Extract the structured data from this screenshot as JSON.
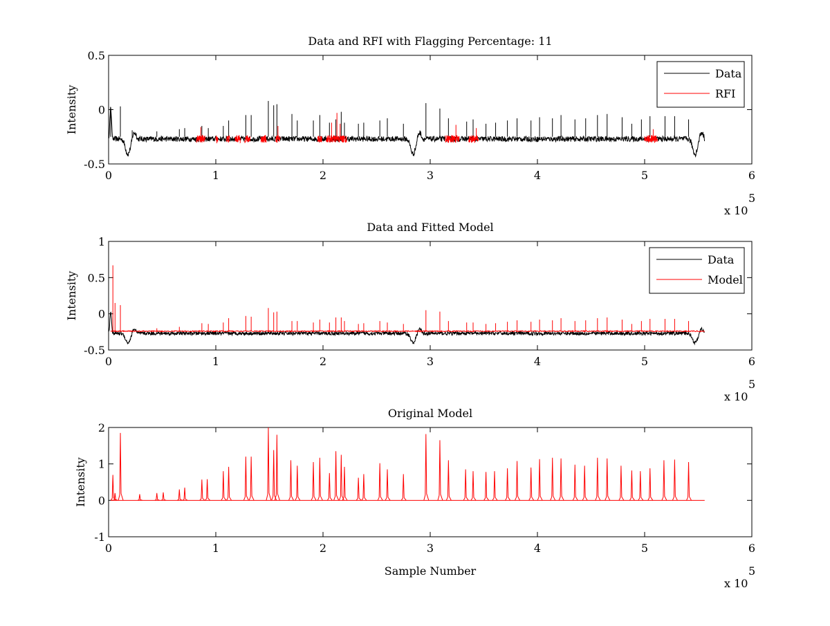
{
  "figure": {
    "background": "#ffffff"
  },
  "chart_data": [
    {
      "type": "line",
      "title": "Data and RFI with Flagging Percentage: 11",
      "xlabel": "",
      "ylabel": "Intensity",
      "xlim": [
        0,
        6
      ],
      "ylim": [
        -0.5,
        0.5
      ],
      "x_ticks": [
        "0",
        "1",
        "2",
        "3",
        "4",
        "5",
        "6"
      ],
      "y_ticks": [
        "-0.5",
        "0",
        "0.5"
      ],
      "x_exponent_label": "x 10",
      "x_exponent_power": "5",
      "grid": false,
      "legend_position": "top-right",
      "series": [
        {
          "name": "Data",
          "color": "#000000",
          "kind": "data_trace"
        },
        {
          "name": "RFI",
          "color": "#ff0000",
          "kind": "flagged_segments"
        }
      ],
      "baseline": -0.27,
      "dips": [
        {
          "x": 0.18,
          "y": -0.41
        },
        {
          "x": 2.84,
          "y": -0.41
        },
        {
          "x": 5.47,
          "y": -0.41
        }
      ],
      "data_spikes": [
        {
          "x": 0.02,
          "y": 0.02
        },
        {
          "x": 0.11,
          "y": 0.03
        },
        {
          "x": 0.22,
          "y": -0.19
        },
        {
          "x": 0.45,
          "y": -0.2
        },
        {
          "x": 0.66,
          "y": -0.18
        },
        {
          "x": 0.71,
          "y": -0.17
        },
        {
          "x": 0.87,
          "y": -0.15
        },
        {
          "x": 0.93,
          "y": -0.17
        },
        {
          "x": 1.07,
          "y": -0.15
        },
        {
          "x": 1.12,
          "y": -0.1
        },
        {
          "x": 1.28,
          "y": -0.05
        },
        {
          "x": 1.33,
          "y": -0.05
        },
        {
          "x": 1.49,
          "y": 0.08
        },
        {
          "x": 1.54,
          "y": 0.04
        },
        {
          "x": 1.57,
          "y": 0.05
        },
        {
          "x": 1.71,
          "y": -0.04
        },
        {
          "x": 1.76,
          "y": -0.1
        },
        {
          "x": 1.91,
          "y": -0.1
        },
        {
          "x": 1.97,
          "y": -0.05
        },
        {
          "x": 2.06,
          "y": -0.12
        },
        {
          "x": 2.12,
          "y": -0.09
        },
        {
          "x": 2.17,
          "y": -0.02
        },
        {
          "x": 2.2,
          "y": -0.12
        },
        {
          "x": 2.33,
          "y": -0.13
        },
        {
          "x": 2.38,
          "y": -0.12
        },
        {
          "x": 2.53,
          "y": -0.1
        },
        {
          "x": 2.6,
          "y": -0.08
        },
        {
          "x": 2.75,
          "y": -0.13
        },
        {
          "x": 2.96,
          "y": 0.06
        },
        {
          "x": 3.09,
          "y": 0.01
        },
        {
          "x": 3.17,
          "y": -0.08
        },
        {
          "x": 3.34,
          "y": -0.11
        },
        {
          "x": 3.4,
          "y": -0.09
        },
        {
          "x": 3.52,
          "y": -0.13
        },
        {
          "x": 3.61,
          "y": -0.12
        },
        {
          "x": 3.72,
          "y": -0.1
        },
        {
          "x": 3.81,
          "y": -0.08
        },
        {
          "x": 3.94,
          "y": -0.1
        },
        {
          "x": 4.02,
          "y": -0.07
        },
        {
          "x": 4.14,
          "y": -0.08
        },
        {
          "x": 4.22,
          "y": -0.05
        },
        {
          "x": 4.35,
          "y": -0.09
        },
        {
          "x": 4.45,
          "y": -0.08
        },
        {
          "x": 4.56,
          "y": -0.05
        },
        {
          "x": 4.65,
          "y": -0.04
        },
        {
          "x": 4.79,
          "y": -0.07
        },
        {
          "x": 4.88,
          "y": -0.13
        },
        {
          "x": 4.97,
          "y": -0.09
        },
        {
          "x": 5.05,
          "y": -0.06
        },
        {
          "x": 5.19,
          "y": -0.06
        },
        {
          "x": 5.28,
          "y": -0.06
        },
        {
          "x": 5.41,
          "y": -0.09
        }
      ],
      "rfi_segments": [
        [
          0.82,
          0.9
        ],
        [
          1.0,
          1.02
        ],
        [
          1.1,
          1.13
        ],
        [
          1.18,
          1.23
        ],
        [
          1.27,
          1.32
        ],
        [
          1.42,
          1.47
        ],
        [
          1.56,
          1.6
        ],
        [
          1.95,
          1.99
        ],
        [
          2.03,
          2.22
        ],
        [
          3.14,
          3.27
        ],
        [
          3.36,
          3.45
        ],
        [
          5.0,
          5.12
        ]
      ]
    },
    {
      "type": "line",
      "title": "Data and Fitted Model",
      "xlabel": "",
      "ylabel": "Intensity",
      "xlim": [
        0,
        6
      ],
      "ylim": [
        -0.5,
        1
      ],
      "x_ticks": [
        "0",
        "1",
        "2",
        "3",
        "4",
        "5",
        "6"
      ],
      "y_ticks": [
        "-0.5",
        "0",
        "0.5",
        "1"
      ],
      "x_exponent_label": "x 10",
      "x_exponent_power": "5",
      "grid": false,
      "legend_position": "top-right",
      "series": [
        {
          "name": "Data",
          "color": "#000000",
          "kind": "data_trace"
        },
        {
          "name": "Model",
          "color": "#ff0000",
          "kind": "model_trace"
        }
      ],
      "baseline": -0.27,
      "model_baseline": -0.24,
      "dips": [
        {
          "x": 0.18,
          "y": -0.4
        },
        {
          "x": 2.84,
          "y": -0.4
        },
        {
          "x": 5.47,
          "y": -0.4
        }
      ],
      "model_spikes": [
        {
          "x": 0.04,
          "y": 0.67
        },
        {
          "x": 0.06,
          "y": 0.15
        },
        {
          "x": 0.11,
          "y": 0.12
        },
        {
          "x": 0.45,
          "y": -0.2
        },
        {
          "x": 0.66,
          "y": -0.18
        },
        {
          "x": 0.87,
          "y": -0.13
        },
        {
          "x": 0.93,
          "y": -0.14
        },
        {
          "x": 1.07,
          "y": -0.12
        },
        {
          "x": 1.12,
          "y": -0.06
        },
        {
          "x": 1.28,
          "y": -0.03
        },
        {
          "x": 1.33,
          "y": -0.04
        },
        {
          "x": 1.49,
          "y": 0.08
        },
        {
          "x": 1.54,
          "y": 0.02
        },
        {
          "x": 1.57,
          "y": 0.03
        },
        {
          "x": 1.71,
          "y": -0.1
        },
        {
          "x": 1.76,
          "y": -0.1
        },
        {
          "x": 1.91,
          "y": -0.12
        },
        {
          "x": 1.97,
          "y": -0.08
        },
        {
          "x": 2.06,
          "y": -0.12
        },
        {
          "x": 2.12,
          "y": -0.05
        },
        {
          "x": 2.17,
          "y": -0.05
        },
        {
          "x": 2.2,
          "y": -0.1
        },
        {
          "x": 2.33,
          "y": -0.14
        },
        {
          "x": 2.38,
          "y": -0.13
        },
        {
          "x": 2.53,
          "y": -0.1
        },
        {
          "x": 2.6,
          "y": -0.12
        },
        {
          "x": 2.75,
          "y": -0.14
        },
        {
          "x": 2.96,
          "y": 0.05
        },
        {
          "x": 3.09,
          "y": 0.03
        },
        {
          "x": 3.17,
          "y": -0.1
        },
        {
          "x": 3.34,
          "y": -0.12
        },
        {
          "x": 3.4,
          "y": -0.12
        },
        {
          "x": 3.52,
          "y": -0.14
        },
        {
          "x": 3.61,
          "y": -0.13
        },
        {
          "x": 3.72,
          "y": -0.11
        },
        {
          "x": 3.81,
          "y": -0.09
        },
        {
          "x": 3.94,
          "y": -0.11
        },
        {
          "x": 4.02,
          "y": -0.08
        },
        {
          "x": 4.14,
          "y": -0.09
        },
        {
          "x": 4.22,
          "y": -0.06
        },
        {
          "x": 4.35,
          "y": -0.1
        },
        {
          "x": 4.45,
          "y": -0.09
        },
        {
          "x": 4.56,
          "y": -0.06
        },
        {
          "x": 4.65,
          "y": -0.05
        },
        {
          "x": 4.79,
          "y": -0.08
        },
        {
          "x": 4.88,
          "y": -0.14
        },
        {
          "x": 4.97,
          "y": -0.1
        },
        {
          "x": 5.05,
          "y": -0.07
        },
        {
          "x": 5.19,
          "y": -0.07
        },
        {
          "x": 5.28,
          "y": -0.07
        },
        {
          "x": 5.41,
          "y": -0.1
        }
      ]
    },
    {
      "type": "line",
      "title": "Original Model",
      "xlabel": "Sample Number",
      "ylabel": "Intensity",
      "xlim": [
        0,
        6
      ],
      "ylim": [
        -1,
        2
      ],
      "x_ticks": [
        "0",
        "1",
        "2",
        "3",
        "4",
        "5",
        "6"
      ],
      "y_ticks": [
        "-1",
        "0",
        "1",
        "2"
      ],
      "x_exponent_label": "x 10",
      "x_exponent_power": "5",
      "grid": false,
      "series": [
        {
          "name": "Original Model",
          "color": "#ff0000",
          "kind": "model_trace"
        }
      ],
      "model_baseline": 0,
      "model_extent": [
        0.02,
        5.56
      ],
      "model_spikes": [
        {
          "x": 0.04,
          "y": 0.7
        },
        {
          "x": 0.06,
          "y": 0.2
        },
        {
          "x": 0.11,
          "y": 1.85
        },
        {
          "x": 0.29,
          "y": 0.17
        },
        {
          "x": 0.45,
          "y": 0.2
        },
        {
          "x": 0.51,
          "y": 0.22
        },
        {
          "x": 0.66,
          "y": 0.3
        },
        {
          "x": 0.71,
          "y": 0.35
        },
        {
          "x": 0.87,
          "y": 0.57
        },
        {
          "x": 0.92,
          "y": 0.58
        },
        {
          "x": 1.07,
          "y": 0.8
        },
        {
          "x": 1.12,
          "y": 0.92
        },
        {
          "x": 1.28,
          "y": 1.2
        },
        {
          "x": 1.33,
          "y": 1.2
        },
        {
          "x": 1.49,
          "y": 2.0
        },
        {
          "x": 1.54,
          "y": 1.38
        },
        {
          "x": 1.57,
          "y": 1.8
        },
        {
          "x": 1.7,
          "y": 1.1
        },
        {
          "x": 1.76,
          "y": 0.95
        },
        {
          "x": 1.91,
          "y": 1.05
        },
        {
          "x": 1.97,
          "y": 1.17
        },
        {
          "x": 2.06,
          "y": 0.75
        },
        {
          "x": 2.12,
          "y": 1.35
        },
        {
          "x": 2.17,
          "y": 1.25
        },
        {
          "x": 2.2,
          "y": 0.92
        },
        {
          "x": 2.33,
          "y": 0.62
        },
        {
          "x": 2.38,
          "y": 0.72
        },
        {
          "x": 2.53,
          "y": 1.02
        },
        {
          "x": 2.6,
          "y": 0.85
        },
        {
          "x": 2.75,
          "y": 0.72
        },
        {
          "x": 2.96,
          "y": 1.82
        },
        {
          "x": 3.09,
          "y": 1.65
        },
        {
          "x": 3.17,
          "y": 1.1
        },
        {
          "x": 3.33,
          "y": 0.85
        },
        {
          "x": 3.4,
          "y": 0.8
        },
        {
          "x": 3.52,
          "y": 0.78
        },
        {
          "x": 3.6,
          "y": 0.8
        },
        {
          "x": 3.72,
          "y": 0.88
        },
        {
          "x": 3.81,
          "y": 1.08
        },
        {
          "x": 3.94,
          "y": 0.9
        },
        {
          "x": 4.02,
          "y": 1.13
        },
        {
          "x": 4.14,
          "y": 1.17
        },
        {
          "x": 4.22,
          "y": 1.15
        },
        {
          "x": 4.35,
          "y": 0.98
        },
        {
          "x": 4.44,
          "y": 0.95
        },
        {
          "x": 4.56,
          "y": 1.17
        },
        {
          "x": 4.65,
          "y": 1.15
        },
        {
          "x": 4.78,
          "y": 0.95
        },
        {
          "x": 4.88,
          "y": 0.82
        },
        {
          "x": 4.96,
          "y": 0.8
        },
        {
          "x": 5.05,
          "y": 0.88
        },
        {
          "x": 5.18,
          "y": 1.1
        },
        {
          "x": 5.28,
          "y": 1.12
        },
        {
          "x": 5.41,
          "y": 1.05
        }
      ]
    }
  ]
}
